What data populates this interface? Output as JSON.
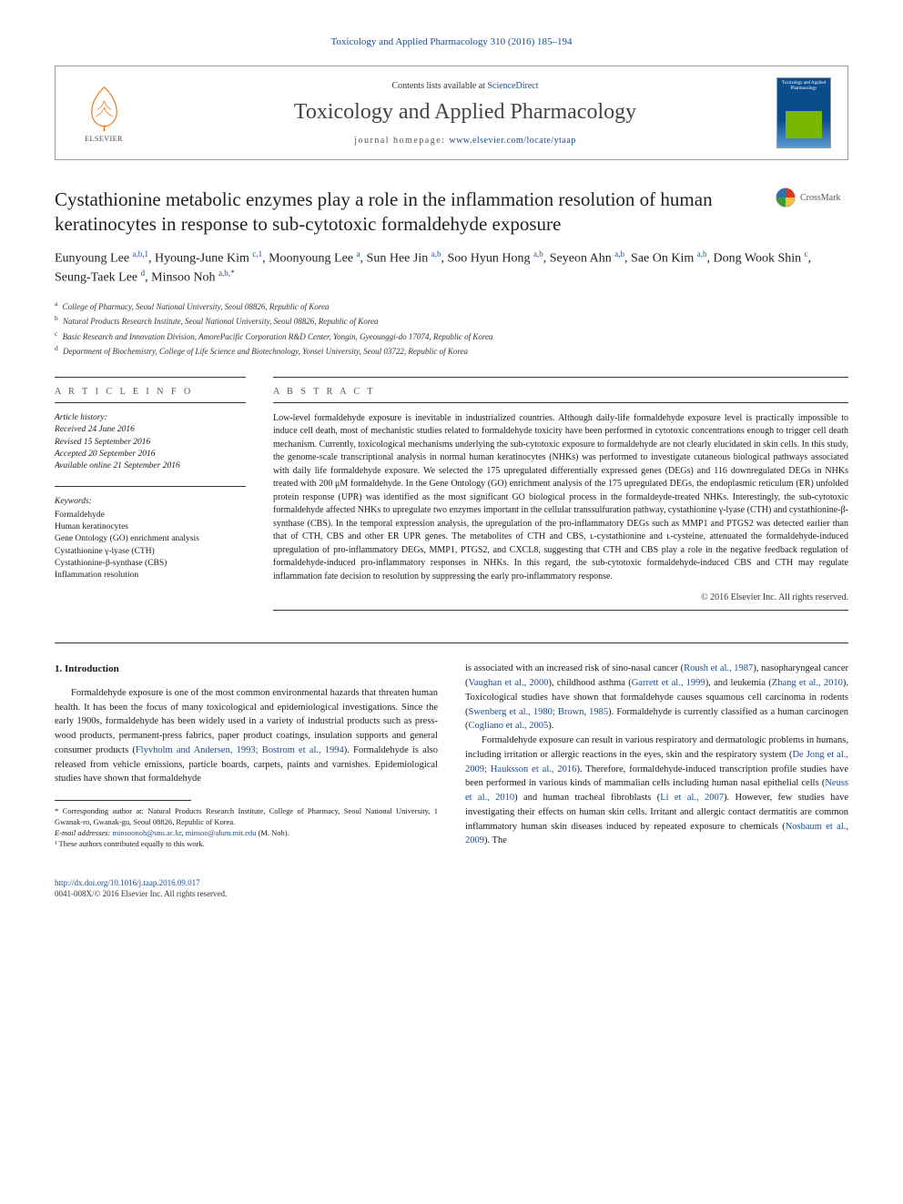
{
  "journal_ref_link": "Toxicology and Applied Pharmacology 310 (2016) 185–194",
  "header": {
    "contents_prefix": "Contents lists available at ",
    "contents_link": "ScienceDirect",
    "journal_name": "Toxicology and Applied Pharmacology",
    "homepage_label": "journal homepage: ",
    "homepage_url": "www.elsevier.com/locate/ytaap",
    "publisher": "ELSEVIER",
    "cover_title": "Toxicology and Applied Pharmacology"
  },
  "crossmark_label": "CrossMark",
  "title": "Cystathionine metabolic enzymes play a role in the inflammation resolution of human keratinocytes in response to sub-cytotoxic formaldehyde exposure",
  "authors_html": "Eunyoung Lee <sup><a>a,b,1</a></sup>, Hyoung-June Kim <sup><a>c,1</a></sup>, Moonyoung Lee <sup><a>a</a></sup>, Sun Hee Jin <sup><a>a,b</a></sup>, Soo Hyun Hong <sup><a>a,b</a></sup>, Seyeon Ahn <sup><a>a,b</a></sup>, Sae On Kim <sup><a>a,b</a></sup>, Dong Wook Shin <sup><a>c</a></sup>, Seung-Taek Lee <sup><a>d</a></sup>, Minsoo Noh <sup><a>a,b,</a>*</sup>",
  "affiliations": [
    {
      "key": "a",
      "text": "College of Pharmacy, Seoul National University, Seoul 08826, Republic of Korea"
    },
    {
      "key": "b",
      "text": "Natural Products Research Institute, Seoul National University, Seoul 08826, Republic of Korea"
    },
    {
      "key": "c",
      "text": "Basic Research and Innovation Division, AmorePacific Corporation R&D Center, Yongin, Gyeounggi-do 17074, Republic of Korea"
    },
    {
      "key": "d",
      "text": "Department of Biochemistry, College of Life Science and Biotechnology, Yonsei University, Seoul 03722, Republic of Korea"
    }
  ],
  "article_info": {
    "heading": "A R T I C L E   I N F O",
    "history_label": "Article history:",
    "history": [
      "Received 24 June 2016",
      "Revised 15 September 2016",
      "Accepted 20 September 2016",
      "Available online 21 September 2016"
    ],
    "keywords_label": "Keywords:",
    "keywords": [
      "Formaldehyde",
      "Human keratinocytes",
      "Gene Ontology (GO) enrichment analysis",
      "Cystathionine γ-lyase (CTH)",
      "Cystathionine-β-synthase (CBS)",
      "Inflammation resolution"
    ]
  },
  "abstract": {
    "heading": "A B S T R A C T",
    "text": "Low-level formaldehyde exposure is inevitable in industrialized countries. Although daily-life formaldehyde exposure level is practically impossible to induce cell death, most of mechanistic studies related to formaldehyde toxicity have been performed in cytotoxic concentrations enough to trigger cell death mechanism. Currently, toxicological mechanisms underlying the sub-cytotoxic exposure to formaldehyde are not clearly elucidated in skin cells. In this study, the genome-scale transcriptional analysis in normal human keratinocytes (NHKs) was performed to investigate cutaneous biological pathways associated with daily life formaldehyde exposure. We selected the 175 upregulated differentially expressed genes (DEGs) and 116 downregulated DEGs in NHKs treated with 200 μM formaldehyde. In the Gene Ontology (GO) enrichment analysis of the 175 upregulated DEGs, the endoplasmic reticulum (ER) unfolded protein response (UPR) was identified as the most significant GO biological process in the formaldeyde-treated NHKs. Interestingly, the sub-cytotoxic formaldehyde affected NHKs to upregulate two enzymes important in the cellular transsulfuration pathway, cystathionine γ-lyase (CTH) and cystathionine-β-synthase (CBS). In the temporal expression analysis, the upregulation of the pro-inflammatory DEGs such as MMP1 and PTGS2 was detected earlier than that of CTH, CBS and other ER UPR genes. The metabolites of CTH and CBS, ʟ-cystathionine and ʟ-cysteine, attenuated the formaldehyde-induced upregulation of pro-inflammatory DEGs, MMP1, PTGS2, and CXCL8, suggesting that CTH and CBS play a role in the negative feedback regulation of formaldehyde-induced pro-inflammatory responses in NHKs. In this regard, the sub-cytotoxic formaldehyde-induced CBS and CTH may regulate inflammation fate decision to resolution by suppressing the early pro-inflammatory response.",
    "copyright": "© 2016 Elsevier Inc. All rights reserved."
  },
  "body": {
    "intro_heading": "1. Introduction",
    "col1_p1": "Formaldehyde exposure is one of the most common environmental hazards that threaten human health. It has been the focus of many toxicological and epidemiological investigations. Since the early 1900s, formaldehyde has been widely used in a variety of industrial products such as press-wood products, permanent-press fabrics, paper product coatings, insulation supports and general consumer products (",
    "col1_link1": "Flyvholm and Andersen, 1993; Bostrom et al., 1994",
    "col1_p1b": "). Formaldehyde is also released from vehicle emissions, particle boards, carpets, paints and varnishes. Epidemiological studies have shown that formaldehyde",
    "col2_p1a": "is associated with an increased risk of sino-nasal cancer (",
    "col2_l1": "Roush et al., 1987",
    "col2_p1b": "), nasopharyngeal cancer (",
    "col2_l2": "Vaughan et al., 2000",
    "col2_p1c": "), childhood asthma (",
    "col2_l3": "Garrett et al., 1999",
    "col2_p1d": "), and leukemia (",
    "col2_l4": "Zhang et al., 2010",
    "col2_p1e": "). Toxicological studies have shown that formaldehyde causes squamous cell carcinoma in rodents (",
    "col2_l5": "Swenberg et al., 1980; Brown, 1985",
    "col2_p1f": "). Formaldehyde is currently classified as a human carcinogen (",
    "col2_l6": "Cogliano et al., 2005",
    "col2_p1g": ").",
    "col2_p2a": "Formaldehyde exposure can result in various respiratory and dermatologic problems in humans, including irritation or allergic reactions in the eyes, skin and the respiratory system (",
    "col2_l7": "De Jong et al., 2009; Hauksson et al., 2016",
    "col2_p2b": "). Therefore, formaldehyde-induced transcription profile studies have been performed in various kinds of mammalian cells including human nasal epithelial cells (",
    "col2_l8": "Neuss et al., 2010",
    "col2_p2c": ") and human tracheal fibroblasts (",
    "col2_l9": "Li et al., 2007",
    "col2_p2d": "). However, few studies have investigating their effects on human skin cells. Irritant and allergic contact dermatitis are common inflammatory human skin diseases induced by repeated exposure to chemicals (",
    "col2_l10": "Nosbaum et al., 2009",
    "col2_p2e": "). The"
  },
  "footnotes": {
    "corr_label": "* Corresponding author at: Natural Products Research Institute, College of Pharmacy, Seoul National University, 1 Gwanak-ro, Gwanak-gu, Seoul 08826, Republic of Korea.",
    "email_label": "E-mail addresses: ",
    "email1": "minsoonoh@snu.ac.kr",
    "email_sep": ", ",
    "email2": "minsoo@alum.mit.edu",
    "email_suffix": " (M. Noh).",
    "note1": "¹ These authors contributed equally to this work."
  },
  "footer": {
    "doi": "http://dx.doi.org/10.1016/j.taap.2016.09.017",
    "issn_line": "0041-008X/© 2016 Elsevier Inc. All rights reserved."
  },
  "colors": {
    "link": "#1a4d8f",
    "text": "#1a1a1a",
    "rule": "#333333",
    "elsevier_orange": "#ef6c00",
    "cover_top": "#0a4d8c",
    "cover_accent": "#7ab800",
    "crossmark_red": "#d9381e",
    "crossmark_blue": "#2f6fb0",
    "crossmark_yellow": "#f5c242",
    "crossmark_green": "#3d9b35"
  }
}
